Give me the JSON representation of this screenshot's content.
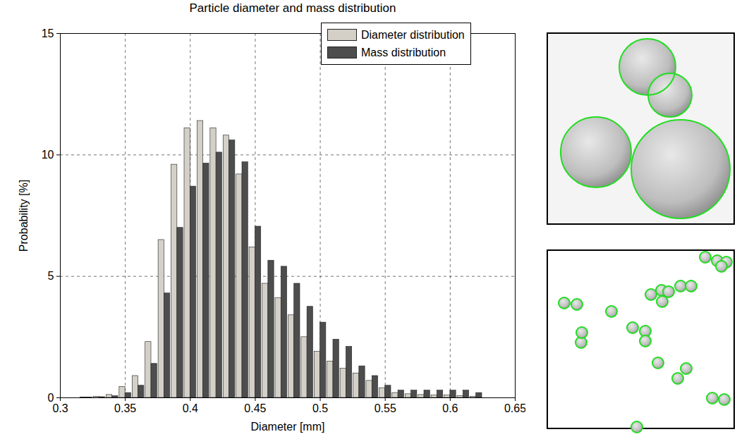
{
  "chart_data": {
    "type": "bar",
    "title": "Particle diameter and mass distribution",
    "x_label": "Diameter [mm]",
    "y_label": "Probability [%]",
    "x": [
      0.32,
      0.33,
      0.34,
      0.35,
      0.36,
      0.37,
      0.38,
      0.39,
      0.4,
      0.41,
      0.42,
      0.43,
      0.44,
      0.45,
      0.46,
      0.47,
      0.48,
      0.49,
      0.5,
      0.51,
      0.52,
      0.53,
      0.54,
      0.55,
      0.56,
      0.57,
      0.58,
      0.59,
      0.6,
      0.61,
      0.62
    ],
    "series": [
      {
        "name": "Diameter distribution",
        "color": "#d4d0c8",
        "values": [
          0.02,
          0.05,
          0.12,
          0.45,
          0.9,
          2.3,
          6.5,
          9.6,
          11.1,
          11.4,
          11.1,
          10.8,
          9.2,
          6.2,
          4.7,
          4.1,
          3.4,
          2.5,
          1.9,
          1.5,
          1.2,
          1.0,
          0.7,
          0.4,
          0.2,
          0.15,
          0.12,
          0.1,
          0.1,
          0.08,
          0.05
        ]
      },
      {
        "name": "Mass distribution",
        "color": "#4d4d4d",
        "values": [
          0.01,
          0.03,
          0.07,
          0.2,
          0.5,
          1.4,
          4.3,
          7.0,
          8.7,
          9.65,
          10.1,
          10.6,
          9.7,
          7.05,
          5.65,
          5.4,
          4.7,
          3.75,
          3.1,
          2.4,
          2.1,
          1.3,
          0.9,
          0.5,
          0.3,
          0.3,
          0.3,
          0.3,
          0.3,
          0.3,
          0.2
        ]
      }
    ],
    "xlim": [
      0.3,
      0.65
    ],
    "xticks": [
      0.3,
      0.35,
      0.4,
      0.45,
      0.5,
      0.55,
      0.6,
      0.65
    ],
    "ylim": [
      0,
      15
    ],
    "yticks": [
      0,
      5,
      10,
      15
    ],
    "grid": true,
    "legend": "top-right"
  }
}
